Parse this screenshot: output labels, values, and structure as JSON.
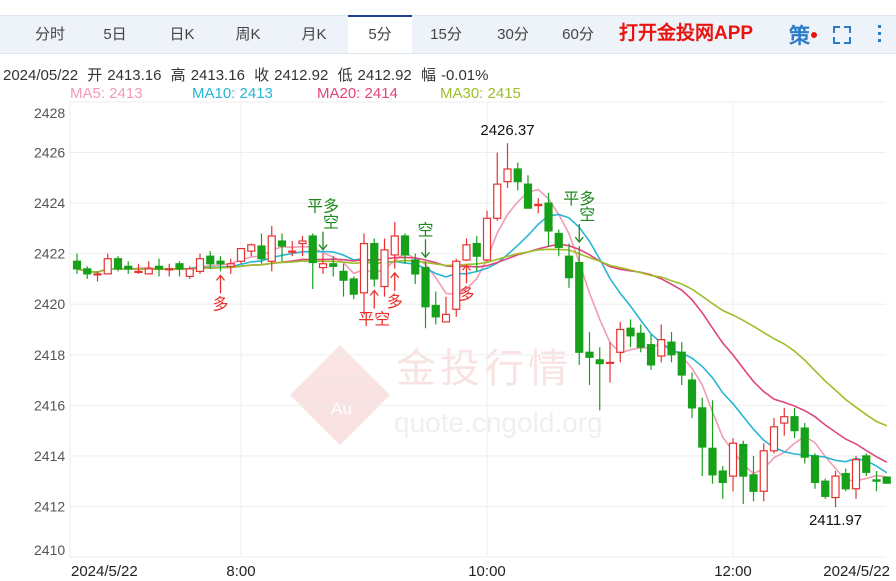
{
  "tabs": [
    {
      "label": "分时"
    },
    {
      "label": "5日"
    },
    {
      "label": "日K"
    },
    {
      "label": "周K"
    },
    {
      "label": "月K"
    },
    {
      "label": "5分",
      "active": true
    },
    {
      "label": "15分"
    },
    {
      "label": "30分"
    },
    {
      "label": "60分"
    }
  ],
  "promo": "打开金投网APP",
  "toolbar": {
    "strategy_label": "策",
    "strategy_icon": "strategy-icon",
    "fullscreen_icon": "fullscreen-icon",
    "more_icon": "more-vertical-icon",
    "accent": "#2b7cc8"
  },
  "info": {
    "date": "2024/05/22",
    "open_label": "开",
    "open": "2413.16",
    "high_label": "高",
    "high": "2413.16",
    "close_label": "收",
    "close": "2412.92",
    "low_label": "低",
    "low": "2412.92",
    "change_label": "幅",
    "change": "-0.01%"
  },
  "ma_legend": [
    {
      "text": "MA5: 2413",
      "color": "#f29bb5"
    },
    {
      "text": "MA10: 2413",
      "color": "#27b6d4"
    },
    {
      "text": "MA20: 2414",
      "color": "#e0457b"
    },
    {
      "text": "MA30: 2415",
      "color": "#9cbf2a"
    }
  ],
  "watermark": {
    "brand": "金投行情",
    "site": "quote.cngold.org",
    "logo": "Au"
  },
  "chart_data": {
    "type": "candlestick",
    "interval": "5分",
    "ylim": [
      2410,
      2428
    ],
    "yticks": [
      2428,
      2426,
      2424,
      2422,
      2420,
      2418,
      2416,
      2414,
      2412,
      2410
    ],
    "grid": true,
    "xtick_labels": [
      {
        "bar": 0,
        "label": "2024/5/22"
      },
      {
        "bar": 16,
        "label": "8:00"
      },
      {
        "bar": 40,
        "label": "10:00"
      },
      {
        "bar": 64,
        "label": "12:00"
      },
      {
        "bar": 79,
        "label": "2024/5/22"
      }
    ],
    "colors": {
      "up": "#e8312f",
      "down": "#17a01a"
    },
    "ma_periods": [
      5,
      10,
      20,
      30
    ],
    "ma_colors": [
      "#f29bb5",
      "#27b6d4",
      "#e0457b",
      "#9cbf2a"
    ],
    "ohlc": [
      [
        2421.7,
        2422.0,
        2421.2,
        2421.4
      ],
      [
        2421.4,
        2421.5,
        2421.0,
        2421.2
      ],
      [
        2421.2,
        2421.3,
        2420.9,
        2421.2
      ],
      [
        2421.2,
        2422.0,
        2421.2,
        2421.8
      ],
      [
        2421.8,
        2421.9,
        2421.3,
        2421.4
      ],
      [
        2421.5,
        2421.7,
        2421.2,
        2421.4
      ],
      [
        2421.3,
        2421.6,
        2421.2,
        2421.3
      ],
      [
        2421.2,
        2421.7,
        2421.2,
        2421.4
      ],
      [
        2421.5,
        2421.8,
        2421.1,
        2421.4
      ],
      [
        2421.4,
        2421.6,
        2421.1,
        2421.4
      ],
      [
        2421.6,
        2421.7,
        2421.1,
        2421.4
      ],
      [
        2421.1,
        2421.5,
        2421.0,
        2421.4
      ],
      [
        2421.3,
        2422.0,
        2421.2,
        2421.8
      ],
      [
        2421.9,
        2422.1,
        2421.4,
        2421.6
      ],
      [
        2421.7,
        2421.9,
        2421.3,
        2421.6
      ],
      [
        2421.5,
        2421.8,
        2421.2,
        2421.6
      ],
      [
        2421.7,
        2422.2,
        2421.6,
        2422.2
      ],
      [
        2422.1,
        2422.4,
        2421.9,
        2422.35
      ],
      [
        2422.3,
        2422.8,
        2421.6,
        2421.8
      ],
      [
        2421.7,
        2423.1,
        2421.3,
        2422.7
      ],
      [
        2422.5,
        2422.8,
        2421.7,
        2422.3
      ],
      [
        2422.1,
        2422.5,
        2421.9,
        2422.1
      ],
      [
        2422.4,
        2422.7,
        2421.9,
        2422.5
      ],
      [
        2422.7,
        2422.8,
        2420.6,
        2421.65
      ],
      [
        2421.45,
        2422.0,
        2421.2,
        2421.6
      ],
      [
        2421.6,
        2421.9,
        2421.1,
        2421.5
      ],
      [
        2421.3,
        2421.6,
        2420.3,
        2420.95
      ],
      [
        2421.0,
        2421.1,
        2420.2,
        2420.4
      ],
      [
        2420.45,
        2422.8,
        2419.6,
        2422.4
      ],
      [
        2422.4,
        2422.6,
        2420.7,
        2421.0
      ],
      [
        2420.7,
        2422.6,
        2420.3,
        2422.15
      ],
      [
        2421.95,
        2423.25,
        2421.4,
        2422.7
      ],
      [
        2422.7,
        2422.8,
        2421.6,
        2421.95
      ],
      [
        2421.75,
        2422.0,
        2420.8,
        2421.2
      ],
      [
        2421.45,
        2421.7,
        2419.05,
        2419.9
      ],
      [
        2419.95,
        2420.5,
        2419.2,
        2419.5
      ],
      [
        2419.3,
        2420.3,
        2419.3,
        2419.6
      ],
      [
        2419.8,
        2421.8,
        2419.5,
        2421.7
      ],
      [
        2421.75,
        2422.6,
        2421.7,
        2422.35
      ],
      [
        2422.4,
        2422.7,
        2421.3,
        2421.9
      ],
      [
        2421.75,
        2423.7,
        2421.7,
        2423.4
      ],
      [
        2423.4,
        2426.0,
        2423.3,
        2424.75
      ],
      [
        2424.85,
        2426.37,
        2424.6,
        2425.35
      ],
      [
        2425.35,
        2425.6,
        2424.5,
        2424.85
      ],
      [
        2424.75,
        2425.1,
        2423.8,
        2423.8
      ],
      [
        2423.9,
        2424.2,
        2423.6,
        2423.95
      ],
      [
        2424.0,
        2424.4,
        2422.3,
        2422.9
      ],
      [
        2422.8,
        2422.95,
        2421.9,
        2422.25
      ],
      [
        2421.9,
        2422.4,
        2420.65,
        2421.05
      ],
      [
        2421.65,
        2422.3,
        2417.6,
        2418.1
      ],
      [
        2418.1,
        2418.9,
        2416.8,
        2417.9
      ],
      [
        2417.8,
        2418.3,
        2415.8,
        2417.65
      ],
      [
        2417.7,
        2418.5,
        2416.9,
        2417.7
      ],
      [
        2418.1,
        2419.3,
        2417.7,
        2419.0
      ],
      [
        2419.05,
        2419.4,
        2418.3,
        2418.75
      ],
      [
        2418.85,
        2419.2,
        2418.1,
        2418.3
      ],
      [
        2418.4,
        2418.8,
        2417.4,
        2417.6
      ],
      [
        2417.95,
        2419.2,
        2417.7,
        2418.6
      ],
      [
        2418.5,
        2418.9,
        2417.7,
        2418.0
      ],
      [
        2418.1,
        2418.5,
        2416.8,
        2417.2
      ],
      [
        2417.0,
        2417.3,
        2415.5,
        2415.9
      ],
      [
        2415.9,
        2416.3,
        2413.2,
        2414.35
      ],
      [
        2414.3,
        2416.2,
        2412.9,
        2413.25
      ],
      [
        2413.4,
        2413.6,
        2412.3,
        2412.95
      ],
      [
        2413.2,
        2414.7,
        2412.6,
        2414.5
      ],
      [
        2414.45,
        2414.6,
        2412.1,
        2413.2
      ],
      [
        2413.25,
        2414.0,
        2412.2,
        2412.6
      ],
      [
        2412.6,
        2414.5,
        2412.2,
        2414.2
      ],
      [
        2414.2,
        2415.5,
        2414.1,
        2415.15
      ],
      [
        2415.3,
        2415.9,
        2414.8,
        2415.55
      ],
      [
        2415.55,
        2415.9,
        2414.7,
        2415.0
      ],
      [
        2415.1,
        2415.3,
        2413.7,
        2413.95
      ],
      [
        2414.0,
        2414.1,
        2412.7,
        2412.95
      ],
      [
        2413.0,
        2413.1,
        2412.3,
        2412.4
      ],
      [
        2412.35,
        2413.4,
        2411.97,
        2413.2
      ],
      [
        2413.3,
        2413.5,
        2412.6,
        2412.7
      ],
      [
        2412.7,
        2414.0,
        2412.3,
        2413.85
      ],
      [
        2414.0,
        2414.1,
        2413.2,
        2413.35
      ],
      [
        2413.05,
        2413.4,
        2412.6,
        2413.0
      ],
      [
        2413.16,
        2413.16,
        2412.92,
        2412.92
      ]
    ],
    "annotations": [
      {
        "bar": 42,
        "text": "2426.37",
        "kind": "high"
      },
      {
        "bar": 74,
        "text": "2411.97",
        "kind": "low"
      }
    ],
    "signals": [
      {
        "bar": 14,
        "dir": "up",
        "lines": [
          "多"
        ]
      },
      {
        "bar": 24,
        "dir": "down",
        "lines": [
          "平多",
          "空"
        ]
      },
      {
        "bar": 29,
        "dir": "up",
        "lines": [
          "平空"
        ]
      },
      {
        "bar": 31,
        "dir": "up",
        "lines": [
          "多"
        ]
      },
      {
        "bar": 34,
        "dir": "down",
        "lines": [
          "空"
        ]
      },
      {
        "bar": 38,
        "dir": "up",
        "lines": [
          "多"
        ]
      },
      {
        "bar": 49,
        "dir": "down",
        "lines": [
          "平多",
          "空"
        ]
      }
    ]
  }
}
